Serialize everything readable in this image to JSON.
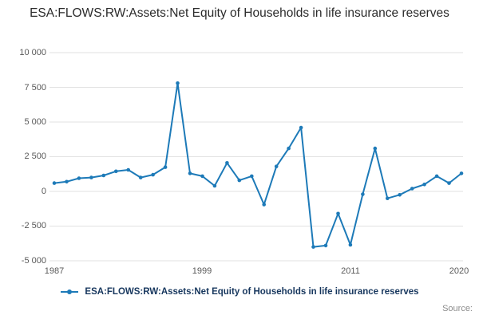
{
  "title": "ESA:FLOWS:RW:Assets:Net Equity of Households in life insurance reserves",
  "legend": {
    "label": "ESA:FLOWS:RW:Assets:Net Equity of Households in life insurance reserves"
  },
  "footer": {
    "source": "Source:"
  },
  "colors": {
    "line": "#1d7ab8",
    "grid": "#e2e2e2",
    "legend_text": "#17375e"
  },
  "chart_data": {
    "type": "line",
    "title": "ESA:FLOWS:RW:Assets:Net Equity of Households in life insurance reserves",
    "xlabel": "",
    "ylabel": "",
    "x": [
      1987,
      1988,
      1989,
      1990,
      1991,
      1992,
      1993,
      1994,
      1995,
      1996,
      1997,
      1998,
      1999,
      2000,
      2001,
      2002,
      2003,
      2004,
      2005,
      2006,
      2007,
      2008,
      2009,
      2010,
      2011,
      2012,
      2013,
      2014,
      2015,
      2016,
      2017,
      2018,
      2019,
      2020
    ],
    "series": [
      {
        "name": "ESA:FLOWS:RW:Assets:Net Equity of Households in life insurance reserves",
        "values": [
          600,
          700,
          950,
          1000,
          1150,
          1450,
          1550,
          1000,
          1200,
          1750,
          7800,
          1300,
          1100,
          400,
          2050,
          800,
          1100,
          -950,
          1800,
          3100,
          4600,
          -4000,
          -3900,
          -1600,
          -3850,
          -200,
          3100,
          -500,
          -250,
          200,
          500,
          1100,
          600,
          1300
        ]
      }
    ],
    "ylim": [
      -5000,
      10000
    ],
    "ytick_values": [
      10000,
      7500,
      5000,
      2500,
      0,
      -2500,
      -5000
    ],
    "ytick_labels": [
      "10 000",
      "7 500",
      "5 000",
      "2 500",
      "0",
      "-2 500",
      "-5 000"
    ],
    "xtick_labels": [
      "1987",
      "1999",
      "2011",
      "2020"
    ],
    "grid": "horizontal",
    "legend_position": "bottom",
    "marker": "circle"
  }
}
